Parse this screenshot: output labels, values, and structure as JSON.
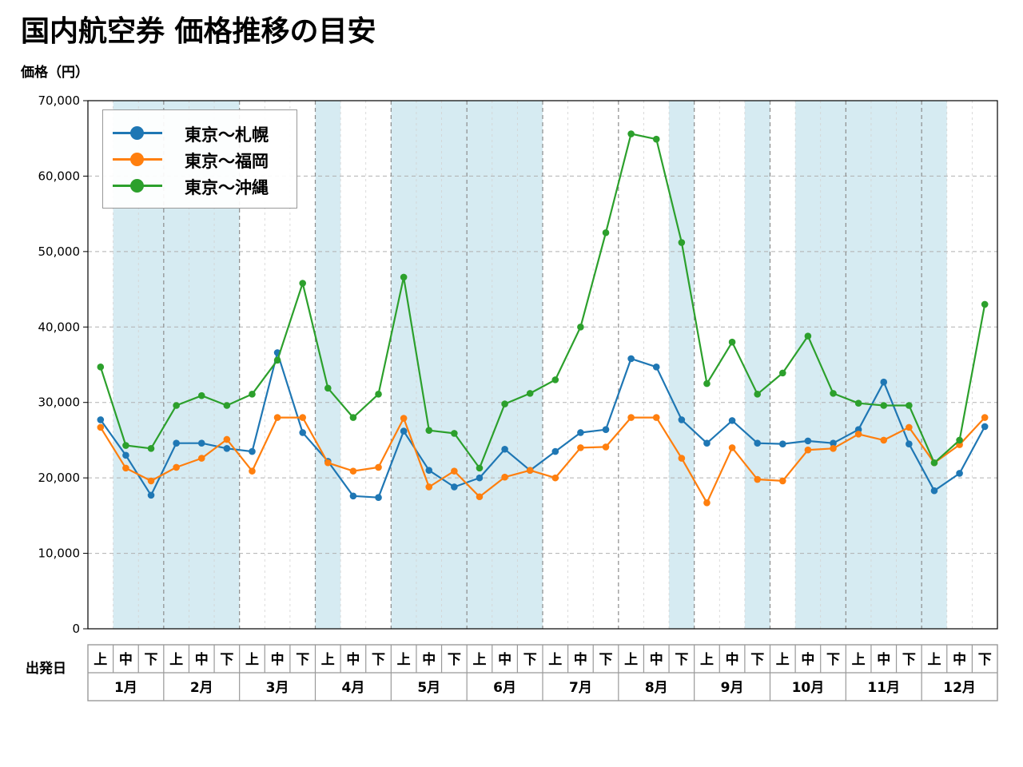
{
  "title": "国内航空券 価格推移の目安",
  "depart_label": "出発日",
  "chart_data": {
    "type": "line",
    "ylabel": "価格（円）",
    "ylim": [
      0,
      70000
    ],
    "yticks": [
      0,
      10000,
      20000,
      30000,
      40000,
      50000,
      60000,
      70000
    ],
    "ytick_labels": [
      "0",
      "10,000",
      "20,000",
      "30,000",
      "40,000",
      "50,000",
      "60,000",
      "70,000"
    ],
    "grid": true,
    "legend_position": "top-left",
    "months": [
      "1月",
      "2月",
      "3月",
      "4月",
      "5月",
      "6月",
      "7月",
      "8月",
      "9月",
      "10月",
      "11月",
      "12月"
    ],
    "periods": [
      "上",
      "中",
      "下"
    ],
    "highlight_ranges": [
      [
        1,
        3
      ],
      [
        3,
        6
      ],
      [
        9,
        10
      ],
      [
        12,
        18
      ],
      [
        23,
        24
      ],
      [
        26,
        27
      ],
      [
        28,
        34
      ]
    ],
    "series": [
      {
        "name": "東京〜札幌",
        "color": "#1f77b4",
        "values": [
          27700,
          23000,
          17700,
          24600,
          24600,
          23900,
          23500,
          36600,
          26000,
          22200,
          17600,
          17400,
          26200,
          21000,
          18800,
          20000,
          23800,
          21000,
          23500,
          26000,
          26400,
          35800,
          34700,
          27700,
          24600,
          27600,
          24600,
          24500,
          24900,
          24600,
          26400,
          32700,
          24500,
          18300,
          20600,
          26800
        ]
      },
      {
        "name": "東京〜福岡",
        "color": "#ff7f0e",
        "values": [
          26700,
          21300,
          19600,
          21400,
          22600,
          25100,
          20900,
          28000,
          28000,
          22000,
          20900,
          21400,
          27900,
          18800,
          20900,
          17500,
          20100,
          21000,
          20000,
          24000,
          24100,
          28000,
          28000,
          22600,
          16700,
          24000,
          19800,
          19600,
          23700,
          23900,
          25800,
          25000,
          26700,
          22000,
          24400,
          28000
        ]
      },
      {
        "name": "東京〜沖縄",
        "color": "#2ca02c",
        "values": [
          34700,
          24300,
          23900,
          29600,
          30900,
          29600,
          31100,
          35600,
          45800,
          31900,
          28000,
          31100,
          46600,
          26300,
          25900,
          21300,
          29800,
          31200,
          33000,
          40000,
          52500,
          65600,
          64900,
          51200,
          32500,
          38000,
          31100,
          33900,
          38800,
          31200,
          29900,
          29600,
          29600,
          22000,
          25000,
          43000
        ]
      }
    ]
  }
}
